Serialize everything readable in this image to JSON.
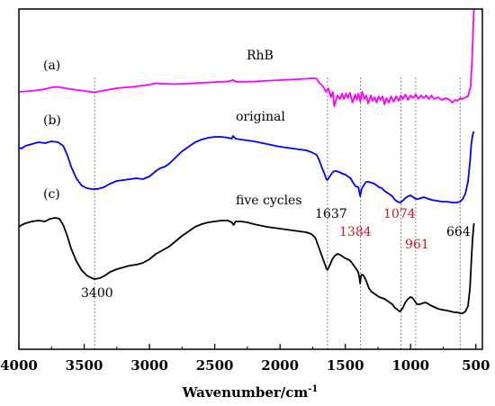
{
  "chart_data": {
    "type": "line",
    "xlabel": "Wavenumber/cm",
    "xlabel_sup": "-1",
    "xlim": [
      4000,
      450
    ],
    "x_ticks": [
      4000,
      3500,
      3000,
      2500,
      2000,
      1500,
      1000,
      500
    ],
    "x_tick_labels": [
      "4000",
      "3500",
      "3000",
      "2500",
      "2000",
      "1500",
      "1000",
      "500"
    ],
    "y_ticks_shown": false,
    "grid": false,
    "legend": "none",
    "series": [
      {
        "id": "a",
        "tag": "(a)",
        "label": "RhB",
        "color": "#ff00ff",
        "points": [
          [
            4000,
            92
          ],
          [
            3900,
            91
          ],
          [
            3800,
            89
          ],
          [
            3750,
            87
          ],
          [
            3700,
            86.5
          ],
          [
            3650,
            88
          ],
          [
            3600,
            89
          ],
          [
            3500,
            91
          ],
          [
            3420,
            92.5
          ],
          [
            3350,
            90.5
          ],
          [
            3250,
            88
          ],
          [
            3100,
            86
          ],
          [
            3000,
            84
          ],
          [
            2950,
            82.5
          ],
          [
            2900,
            83
          ],
          [
            2800,
            83.5
          ],
          [
            2600,
            82
          ],
          [
            2400,
            80.5
          ],
          [
            2360,
            79
          ],
          [
            2330,
            81
          ],
          [
            2200,
            80.5
          ],
          [
            2000,
            79
          ],
          [
            1800,
            77.5
          ],
          [
            1750,
            76.8
          ],
          [
            1720,
            77.5
          ],
          [
            1700,
            82
          ],
          [
            1670,
            86
          ],
          [
            1648,
            92
          ],
          [
            1630,
            88
          ],
          [
            1610,
            98
          ],
          [
            1595,
            92
          ],
          [
            1585,
            108
          ],
          [
            1560,
            96
          ],
          [
            1540,
            100
          ],
          [
            1525,
            94
          ],
          [
            1510,
            100
          ],
          [
            1495,
            94
          ],
          [
            1480,
            99
          ],
          [
            1465,
            93
          ],
          [
            1445,
            104
          ],
          [
            1425,
            95
          ],
          [
            1412,
            101
          ],
          [
            1400,
            94
          ],
          [
            1385,
            103
          ],
          [
            1370,
            92
          ],
          [
            1355,
            100
          ],
          [
            1340,
            96
          ],
          [
            1325,
            105
          ],
          [
            1305,
            96
          ],
          [
            1290,
            102
          ],
          [
            1275,
            98
          ],
          [
            1260,
            104
          ],
          [
            1245,
            97
          ],
          [
            1230,
            101
          ],
          [
            1215,
            97
          ],
          [
            1200,
            106
          ],
          [
            1185,
            99
          ],
          [
            1165,
            104
          ],
          [
            1150,
            97
          ],
          [
            1130,
            103
          ],
          [
            1110,
            97
          ],
          [
            1090,
            102
          ],
          [
            1075,
            96
          ],
          [
            1060,
            100
          ],
          [
            1040,
            95
          ],
          [
            1020,
            101
          ],
          [
            1000,
            96
          ],
          [
            980,
            99
          ],
          [
            960,
            95
          ],
          [
            940,
            100
          ],
          [
            920,
            96
          ],
          [
            900,
            99
          ],
          [
            880,
            96
          ],
          [
            860,
            100
          ],
          [
            840,
            96
          ],
          [
            820,
            100
          ],
          [
            790,
            98
          ],
          [
            760,
            101
          ],
          [
            730,
            99
          ],
          [
            700,
            101
          ],
          [
            680,
            104
          ],
          [
            660,
            101
          ],
          [
            640,
            102
          ],
          [
            620,
            99
          ],
          [
            600,
            100
          ],
          [
            580,
            98
          ],
          [
            560,
            97
          ],
          [
            540,
            86
          ],
          [
            530,
            60
          ],
          [
            520,
            20
          ],
          [
            515,
            0
          ]
        ]
      },
      {
        "id": "b",
        "tag": "(b)",
        "label": "original",
        "color": "#0000ff",
        "points": [
          [
            4000,
            154
          ],
          [
            3980,
            155
          ],
          [
            3950,
            152
          ],
          [
            3900,
            150
          ],
          [
            3850,
            148
          ],
          [
            3800,
            149
          ],
          [
            3750,
            147
          ],
          [
            3700,
            148
          ],
          [
            3660,
            152
          ],
          [
            3630,
            162
          ],
          [
            3600,
            175
          ],
          [
            3560,
            188
          ],
          [
            3520,
            196
          ],
          [
            3480,
            199
          ],
          [
            3440,
            200
          ],
          [
            3400,
            200
          ],
          [
            3350,
            198
          ],
          [
            3300,
            194
          ],
          [
            3250,
            191
          ],
          [
            3200,
            190
          ],
          [
            3150,
            189
          ],
          [
            3100,
            188
          ],
          [
            3050,
            189
          ],
          [
            3000,
            186
          ],
          [
            2950,
            180
          ],
          [
            2920,
            177
          ],
          [
            2880,
            175
          ],
          [
            2850,
            172
          ],
          [
            2800,
            165
          ],
          [
            2750,
            158
          ],
          [
            2700,
            153
          ],
          [
            2650,
            148
          ],
          [
            2600,
            145
          ],
          [
            2550,
            143
          ],
          [
            2500,
            142
          ],
          [
            2450,
            142
          ],
          [
            2400,
            143
          ],
          [
            2370,
            144
          ],
          [
            2360,
            141
          ],
          [
            2340,
            144
          ],
          [
            2300,
            145
          ],
          [
            2200,
            147
          ],
          [
            2100,
            150
          ],
          [
            2000,
            153
          ],
          [
            1900,
            155
          ],
          [
            1800,
            157
          ],
          [
            1760,
            159
          ],
          [
            1720,
            162
          ],
          [
            1700,
            168
          ],
          [
            1680,
            176
          ],
          [
            1660,
            183
          ],
          [
            1645,
            189
          ],
          [
            1637,
            190
          ],
          [
            1620,
            186
          ],
          [
            1600,
            182
          ],
          [
            1585,
            180
          ],
          [
            1570,
            180
          ],
          [
            1550,
            181
          ],
          [
            1520,
            183
          ],
          [
            1500,
            184
          ],
          [
            1480,
            186
          ],
          [
            1460,
            188
          ],
          [
            1440,
            193
          ],
          [
            1420,
            197
          ],
          [
            1400,
            198
          ],
          [
            1390,
            205
          ],
          [
            1386,
            208
          ],
          [
            1382,
            205
          ],
          [
            1375,
            200
          ],
          [
            1360,
            196
          ],
          [
            1340,
            192
          ],
          [
            1320,
            192
          ],
          [
            1300,
            193
          ],
          [
            1280,
            194
          ],
          [
            1260,
            196
          ],
          [
            1240,
            198
          ],
          [
            1220,
            199
          ],
          [
            1200,
            202
          ],
          [
            1180,
            204
          ],
          [
            1160,
            206
          ],
          [
            1140,
            208
          ],
          [
            1120,
            212
          ],
          [
            1100,
            214
          ],
          [
            1080,
            215
          ],
          [
            1060,
            213
          ],
          [
            1040,
            210
          ],
          [
            1020,
            208
          ],
          [
            1000,
            207
          ],
          [
            980,
            209
          ],
          [
            960,
            211
          ],
          [
            940,
            211
          ],
          [
            920,
            210
          ],
          [
            900,
            209
          ],
          [
            880,
            210
          ],
          [
            860,
            211
          ],
          [
            840,
            212
          ],
          [
            800,
            213
          ],
          [
            760,
            214
          ],
          [
            720,
            214
          ],
          [
            680,
            215
          ],
          [
            650,
            215
          ],
          [
            620,
            214
          ],
          [
            600,
            211
          ],
          [
            580,
            205
          ],
          [
            560,
            192
          ],
          [
            545,
            170
          ],
          [
            535,
            150
          ],
          [
            525,
            140
          ],
          [
            515,
            136
          ]
        ]
      },
      {
        "id": "c",
        "tag": "(c)",
        "label": "five cycles",
        "color": "#000000",
        "points": [
          [
            4000,
            242
          ],
          [
            3980,
            240
          ],
          [
            3950,
            238
          ],
          [
            3900,
            236
          ],
          [
            3850,
            235
          ],
          [
            3800,
            236
          ],
          [
            3760,
            233
          ],
          [
            3720,
            232
          ],
          [
            3690,
            233
          ],
          [
            3660,
            240
          ],
          [
            3630,
            252
          ],
          [
            3600,
            266
          ],
          [
            3560,
            280
          ],
          [
            3520,
            290
          ],
          [
            3480,
            296
          ],
          [
            3440,
            299
          ],
          [
            3420,
            300
          ],
          [
            3380,
            299
          ],
          [
            3340,
            296
          ],
          [
            3300,
            292
          ],
          [
            3250,
            289
          ],
          [
            3200,
            287
          ],
          [
            3150,
            285
          ],
          [
            3100,
            284
          ],
          [
            3050,
            282
          ],
          [
            3000,
            278
          ],
          [
            2950,
            272
          ],
          [
            2900,
            268
          ],
          [
            2850,
            264
          ],
          [
            2800,
            258
          ],
          [
            2750,
            252
          ],
          [
            2700,
            247
          ],
          [
            2650,
            242
          ],
          [
            2600,
            239
          ],
          [
            2550,
            237
          ],
          [
            2500,
            236
          ],
          [
            2450,
            235
          ],
          [
            2400,
            235
          ],
          [
            2370,
            237
          ],
          [
            2355,
            240
          ],
          [
            2340,
            236
          ],
          [
            2300,
            236
          ],
          [
            2250,
            237
          ],
          [
            2200,
            239
          ],
          [
            2100,
            242
          ],
          [
            2000,
            244
          ],
          [
            1900,
            246
          ],
          [
            1800,
            248
          ],
          [
            1760,
            250
          ],
          [
            1730,
            254
          ],
          [
            1710,
            262
          ],
          [
            1690,
            270
          ],
          [
            1670,
            278
          ],
          [
            1655,
            284
          ],
          [
            1645,
            288
          ],
          [
            1637,
            290
          ],
          [
            1620,
            285
          ],
          [
            1600,
            278
          ],
          [
            1580,
            274
          ],
          [
            1560,
            272
          ],
          [
            1540,
            273
          ],
          [
            1520,
            275
          ],
          [
            1500,
            277
          ],
          [
            1480,
            278
          ],
          [
            1460,
            280
          ],
          [
            1440,
            284
          ],
          [
            1420,
            288
          ],
          [
            1402,
            292
          ],
          [
            1392,
            298
          ],
          [
            1386,
            305
          ],
          [
            1382,
            298
          ],
          [
            1375,
            295
          ],
          [
            1360,
            296
          ],
          [
            1340,
            302
          ],
          [
            1320,
            310
          ],
          [
            1300,
            314
          ],
          [
            1280,
            316
          ],
          [
            1260,
            318
          ],
          [
            1240,
            320
          ],
          [
            1220,
            321
          ],
          [
            1200,
            322
          ],
          [
            1180,
            324
          ],
          [
            1160,
            326
          ],
          [
            1140,
            328
          ],
          [
            1120,
            332
          ],
          [
            1100,
            334
          ],
          [
            1085,
            336
          ],
          [
            1074,
            335
          ],
          [
            1060,
            332
          ],
          [
            1040,
            326
          ],
          [
            1020,
            322
          ],
          [
            1000,
            320
          ],
          [
            985,
            321
          ],
          [
            970,
            324
          ],
          [
            961,
            326
          ],
          [
            950,
            328
          ],
          [
            930,
            328
          ],
          [
            910,
            327
          ],
          [
            890,
            326
          ],
          [
            870,
            327
          ],
          [
            850,
            329
          ],
          [
            820,
            331
          ],
          [
            790,
            333
          ],
          [
            760,
            334
          ],
          [
            720,
            335
          ],
          [
            690,
            336
          ],
          [
            664,
            337
          ],
          [
            640,
            337
          ],
          [
            620,
            338
          ],
          [
            600,
            338
          ],
          [
            580,
            336
          ],
          [
            560,
            330
          ],
          [
            545,
            310
          ],
          [
            535,
            280
          ],
          [
            525,
            255
          ],
          [
            515,
            238
          ]
        ]
      }
    ],
    "annotations": {
      "peak_3400": "3400",
      "peak_1637": "1637",
      "peak_1384": "1384",
      "peak_1074": "1074",
      "peak_961": "961",
      "peak_664": "664"
    },
    "annotation_colors": {
      "black": "#000000",
      "red": "#e0141b"
    },
    "guide_lines_at": [
      3420,
      1637,
      1384,
      1074,
      961,
      620
    ]
  }
}
